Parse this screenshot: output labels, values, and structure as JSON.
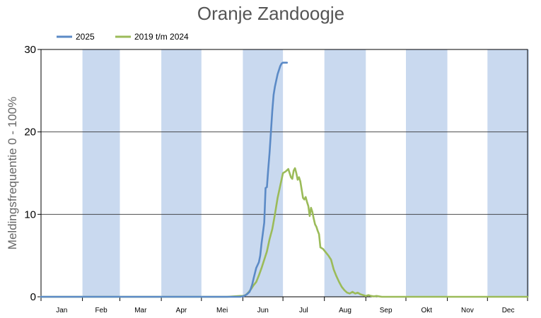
{
  "chart_data": {
    "type": "line",
    "title": "Oranje Zandoogje",
    "ylabel": "Meldingsfrequentie 0 - 100%",
    "xlabel": "",
    "ylim": [
      0,
      30
    ],
    "yticks": [
      "0",
      "10",
      "20",
      "30"
    ],
    "grid": true,
    "legend_position": "top-left",
    "month_band_color": "#c9d9ef",
    "months": [
      "Jan",
      "Feb",
      "Mar",
      "Apr",
      "Mei",
      "Jun",
      "Jul",
      "Aug",
      "Sep",
      "Okt",
      "Nov",
      "Dec"
    ],
    "series": [
      {
        "name": "2025",
        "color": "#5b8ac6",
        "x": [
          1,
          150,
          153,
          155,
          157,
          158,
          159,
          160,
          162,
          164,
          165,
          166,
          168,
          169,
          170,
          171,
          172,
          173,
          174,
          175,
          176,
          178,
          180,
          181,
          182,
          183,
          184,
          185
        ],
        "y": [
          0,
          0,
          0.1,
          0.3,
          0.6,
          1.0,
          1.5,
          2.2,
          3.5,
          4.2,
          5.0,
          6.5,
          9.0,
          13.2,
          13.3,
          15.5,
          17.5,
          20.0,
          22.5,
          24.5,
          25.5,
          27.0,
          28.0,
          28.3,
          28.4,
          28.4,
          28.4,
          28.4
        ]
      },
      {
        "name": "2019 t/m 2024",
        "color": "#9bbb59",
        "x": [
          1,
          140,
          145,
          150,
          152,
          154,
          156,
          158,
          160,
          162,
          164,
          166,
          168,
          170,
          172,
          174,
          176,
          178,
          180,
          182,
          184,
          186,
          188,
          189,
          190,
          191,
          192,
          193,
          194,
          195,
          196,
          197,
          198,
          199,
          200,
          201,
          202,
          203,
          204,
          205,
          206,
          207,
          208,
          209,
          210,
          212,
          214,
          216,
          218,
          220,
          222,
          224,
          226,
          228,
          230,
          232,
          234,
          236,
          238,
          240,
          242,
          244,
          246,
          248,
          250,
          252,
          254,
          256,
          258,
          260,
          262,
          264,
          266,
          268,
          270,
          275,
          300,
          365
        ],
        "y": [
          0,
          0,
          0.05,
          0.1,
          0.1,
          0.2,
          0.5,
          0.9,
          1.4,
          1.8,
          2.6,
          3.5,
          4.5,
          5.5,
          7.0,
          8.2,
          10.0,
          12.0,
          13.5,
          15.0,
          15.2,
          15.5,
          14.5,
          14.3,
          15.3,
          15.6,
          15.0,
          14.2,
          14.5,
          14.0,
          13.0,
          12.0,
          11.8,
          12.1,
          11.5,
          11.0,
          9.8,
          10.8,
          10.3,
          9.5,
          8.8,
          8.5,
          8.0,
          7.6,
          6.0,
          5.8,
          5.4,
          5.0,
          4.5,
          3.3,
          2.5,
          1.8,
          1.2,
          0.8,
          0.5,
          0.4,
          0.6,
          0.4,
          0.5,
          0.3,
          0.2,
          0.1,
          0.2,
          0.1,
          0.05,
          0.1,
          0.05,
          0.0,
          0.0,
          0.0,
          0.0,
          0.0,
          0.0,
          0.0,
          0.0,
          0.0,
          0.0,
          0.0
        ]
      }
    ]
  }
}
